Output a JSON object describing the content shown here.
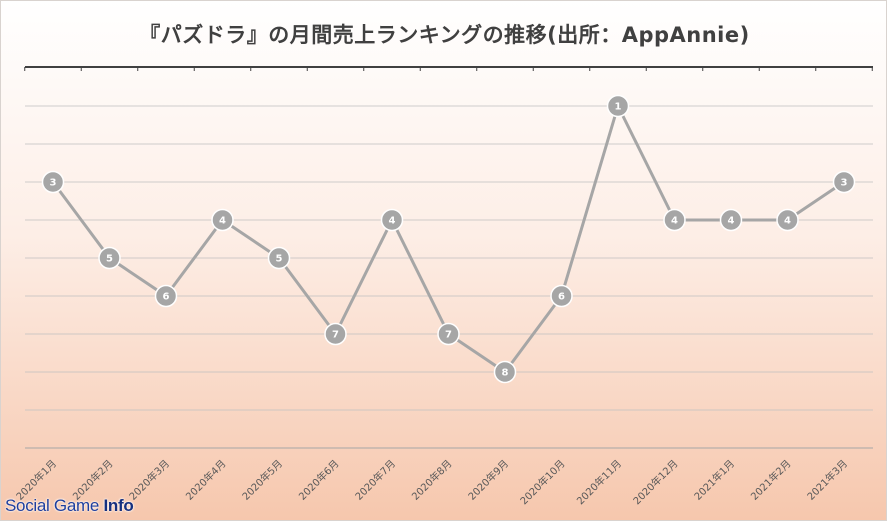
{
  "watermark": {
    "prefix": "Social Game ",
    "emphasis": "Info"
  },
  "chart_data": {
    "type": "line",
    "title": "『パズドラ』の月間売上ランキングの推移(出所：AppAnnie)",
    "xlabel": "",
    "ylabel": "",
    "y_inverted": true,
    "ylim": [
      1,
      10
    ],
    "grid": true,
    "categories": [
      "2020年1月",
      "2020年2月",
      "2020年3月",
      "2020年4月",
      "2020年5月",
      "2020年6月",
      "2020年7月",
      "2020年8月",
      "2020年9月",
      "2020年10月",
      "2020年11月",
      "2020年12月",
      "2021年1月",
      "2021年2月",
      "2021年3月"
    ],
    "series": [
      {
        "values": [
          3,
          5,
          6,
          4,
          5,
          7,
          4,
          7,
          8,
          6,
          1,
          4,
          4,
          4,
          3
        ],
        "color": "#a6a6a6"
      }
    ],
    "marker_label_color": "#ffffff",
    "gridline_color": "#bfbfbf",
    "axis_color": "#404040"
  }
}
